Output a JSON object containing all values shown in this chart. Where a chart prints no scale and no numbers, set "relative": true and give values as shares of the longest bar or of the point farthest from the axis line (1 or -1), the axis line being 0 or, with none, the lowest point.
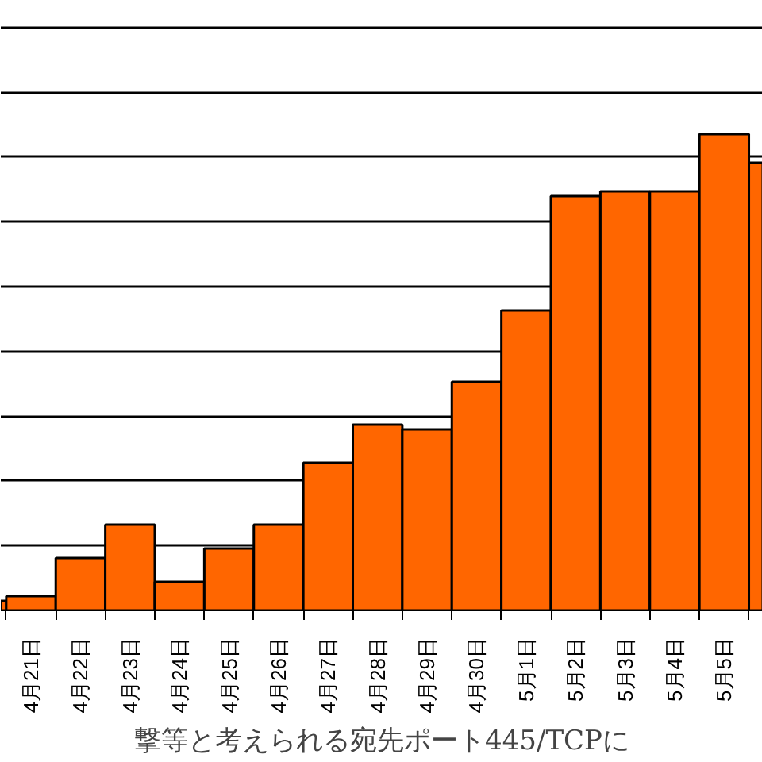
{
  "chart_data": {
    "type": "bar",
    "relative": true,
    "grid": "y",
    "xlabel": "撃等と考えられる宛先ポート445/TCPに",
    "categories": [
      null,
      "4月21日",
      "4月22日",
      "4月23日",
      "4月24日",
      "4月25日",
      "4月26日",
      "4月27日",
      "4月28日",
      "4月29日",
      "4月30日",
      "5月1日",
      "5月2日",
      "5月3日",
      "5月4日",
      "5月5日",
      null
    ],
    "values": [
      0.02,
      0.03,
      0.11,
      0.18,
      0.06,
      0.13,
      0.18,
      0.31,
      0.39,
      0.38,
      0.48,
      0.63,
      0.87,
      0.88,
      0.88,
      1.0,
      0.94
    ],
    "color": "#ff6600"
  }
}
